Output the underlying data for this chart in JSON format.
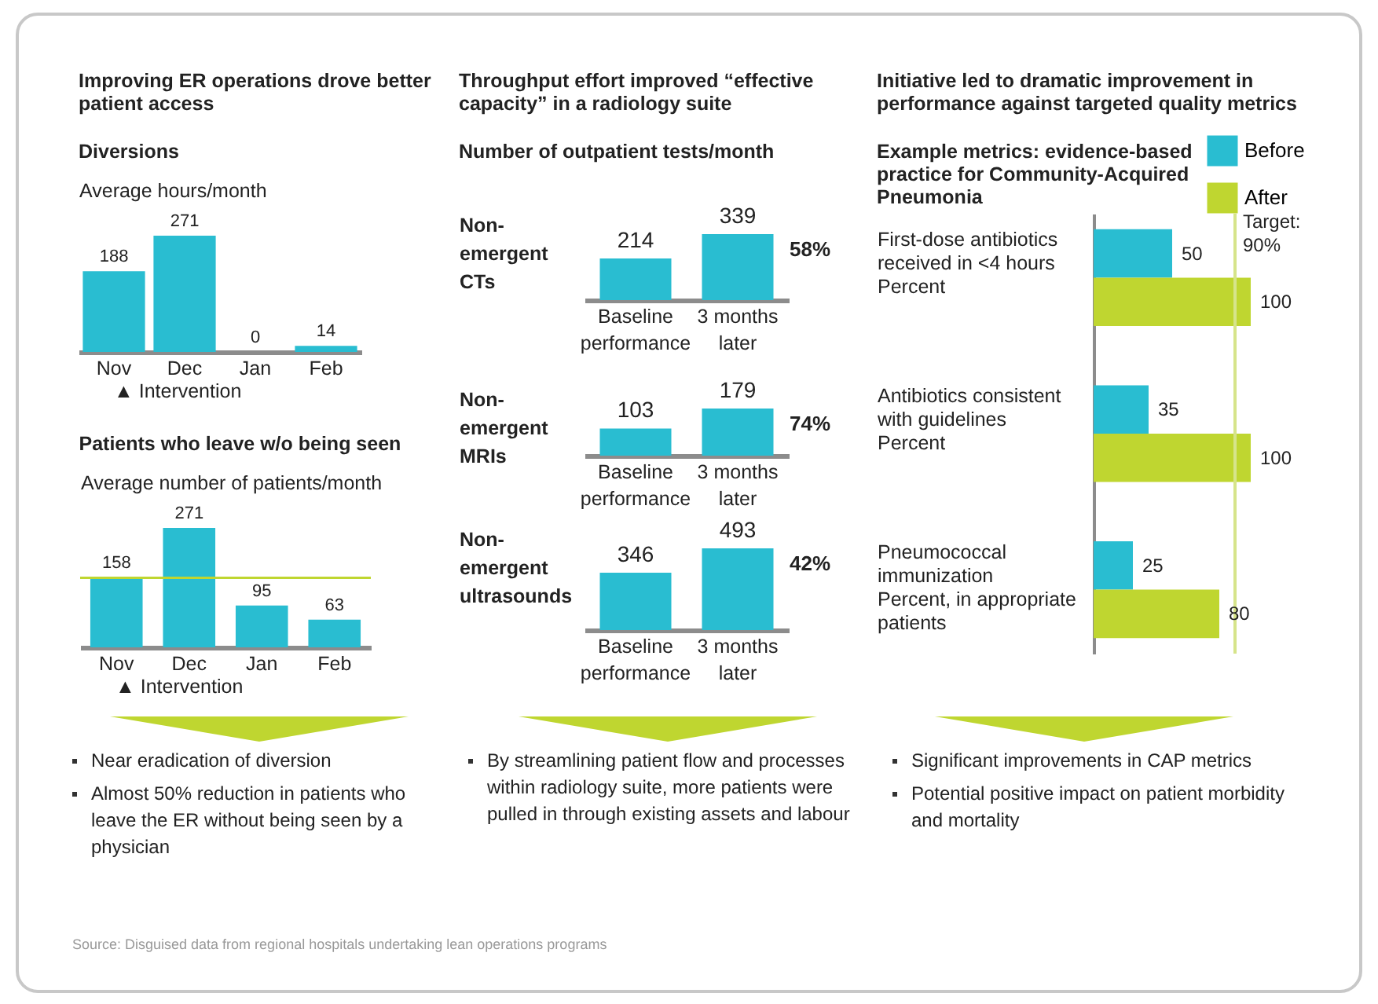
{
  "chart_data": [
    {
      "type": "bar",
      "title": "Improving ER operations drove better patient access",
      "subtitle": "Diversions",
      "ylabel": "Average hours/month",
      "categories": [
        "Nov",
        "Dec",
        "Jan",
        "Feb"
      ],
      "values": [
        188,
        271,
        0,
        14
      ],
      "color": "#29bdd1",
      "data_labels": true,
      "tick_labels": "x",
      "xlabel": "▲ Intervention"
    },
    {
      "type": "bar",
      "title": "Patients who leave w/o being seen",
      "ylabel": "Average number of patients/month",
      "categories": [
        "Nov",
        "Dec",
        "Jan",
        "Feb"
      ],
      "values": [
        158,
        271,
        95,
        63
      ],
      "color": "#29bdd1",
      "data_labels": true,
      "tick_labels": "x",
      "ref_lines": [
        {
          "axis": "y",
          "value": 158,
          "color": "#bfd630"
        }
      ],
      "xlabel": "▲ Intervention",
      "annotations": [
        "Near eradication of diversion",
        "Almost 50% reduction in patients who leave the ER without being seen by a physician"
      ]
    },
    {
      "type": "bar",
      "title": "Throughput effort improved “effective capacity” in a radiology suite",
      "subtitle": "Number of outpatient tests/month",
      "ylabel": "Non-emergent CTs",
      "categories": [
        "Baseline performance",
        "3 months later"
      ],
      "values": [
        214,
        339
      ],
      "color": "#29bdd1",
      "data_labels": true,
      "tick_labels": "x",
      "annotations": [
        {
          "text": "58%",
          "x": "3 months later",
          "y": 339
        }
      ]
    },
    {
      "type": "bar",
      "ylabel": "Non-emergent MRIs",
      "categories": [
        "Baseline performance",
        "3 months later"
      ],
      "values": [
        103,
        179
      ],
      "color": "#29bdd1",
      "data_labels": true,
      "tick_labels": "x",
      "annotations": [
        {
          "text": "74%",
          "x": "3 months later",
          "y": 179
        }
      ]
    },
    {
      "type": "bar",
      "ylabel": "Non-emergent ultrasounds",
      "categories": [
        "Baseline performance",
        "3 months later"
      ],
      "values": [
        346,
        493
      ],
      "color": "#29bdd1",
      "data_labels": true,
      "tick_labels": "x",
      "annotations": [
        {
          "text": "42%",
          "x": "3 months later",
          "y": 493
        },
        "By streamlining patient flow and processes within radiology suite, more patients were pulled in through existing assets and labour"
      ]
    },
    {
      "type": "bar",
      "orientation": "horizontal",
      "title": "Initiative led to dramatic improvement in performance against targeted quality metrics",
      "subtitle": "Example metrics: evidence-based practice for Community-Acquired Pneumonia",
      "categories": [
        "First-dose antibiotics received in <4 hours\nPercent",
        "Antibiotics consistent with guidelines\nPercent",
        "Pneumococcal immunization\nPercent, in appropriate patients"
      ],
      "series": [
        {
          "name": "Before",
          "color": "#29bdd1",
          "values": [
            50,
            35,
            25
          ]
        },
        {
          "name": "After",
          "color": "#bfd630",
          "values": [
            100,
            100,
            80
          ]
        }
      ],
      "data_labels": true,
      "tick_labels": "y",
      "legend": "top right",
      "ref_lines": [
        {
          "axis": "x",
          "value": 90,
          "label": "Target: 90%",
          "color": "#d6e48a"
        }
      ],
      "annotations": [
        "Significant improvements in CAP metrics",
        "Potential positive impact on patient morbidity and mortality",
        "Source: Disguised data from regional hospitals undertaking lean operations programs"
      ]
    }
  ]
}
